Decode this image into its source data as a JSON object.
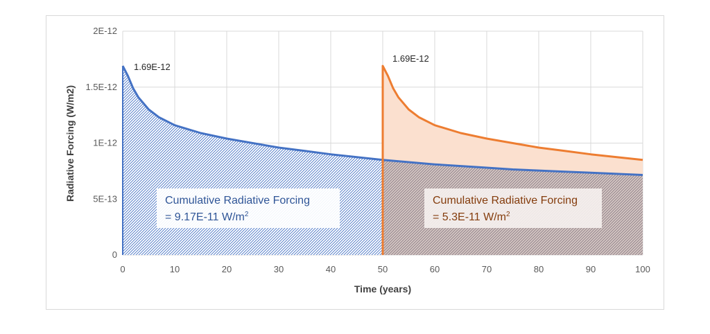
{
  "chart_data": {
    "type": "area",
    "xlabel": "Time (years)",
    "ylabel": "Radiative Forcing (W/m2)",
    "xlim": [
      0,
      100
    ],
    "ylim": [
      0,
      2e-12
    ],
    "x_ticks": [
      0,
      10,
      20,
      30,
      40,
      50,
      60,
      70,
      80,
      90,
      100
    ],
    "x_tick_labels": [
      "0",
      "10",
      "20",
      "30",
      "40",
      "50",
      "60",
      "70",
      "80",
      "90",
      "100"
    ],
    "y_ticks": [
      0,
      5e-13,
      1e-12,
      1.5e-12,
      2e-12
    ],
    "y_tick_labels": [
      "0",
      "5E-13",
      "1E-12",
      "1.5E-12",
      "2E-12"
    ],
    "grid": true,
    "series": [
      {
        "color": "#4472c4",
        "x": [
          0,
          1,
          2,
          3,
          5,
          7,
          10,
          15,
          20,
          25,
          30,
          35,
          40,
          45,
          50,
          55,
          60,
          65,
          70,
          75,
          80,
          85,
          90,
          95,
          100
        ],
        "values": [
          1.69e-12,
          1.6e-12,
          1.49e-12,
          1.41e-12,
          1.3e-12,
          1.23e-12,
          1.16e-12,
          1.09e-12,
          1.04e-12,
          1e-12,
          9.6e-13,
          9.3e-13,
          9e-13,
          8.75e-13,
          8.5e-13,
          8.3e-13,
          8.1e-13,
          7.95e-13,
          7.8e-13,
          7.65e-13,
          7.55e-13,
          7.45e-13,
          7.35e-13,
          7.25e-13,
          7.15e-13
        ]
      },
      {
        "color": "#ed7d31",
        "x": [
          50,
          50,
          51,
          52,
          53,
          55,
          57,
          60,
          65,
          70,
          75,
          80,
          85,
          90,
          95,
          100
        ],
        "values": [
          0,
          1.69e-12,
          1.6e-12,
          1.49e-12,
          1.41e-12,
          1.3e-12,
          1.23e-12,
          1.16e-12,
          1.09e-12,
          1.04e-12,
          1e-12,
          9.6e-13,
          9.3e-13,
          9e-13,
          8.75e-13,
          8.5e-13
        ]
      }
    ],
    "annotations": [
      {
        "text": "1.69E-12",
        "x": 0,
        "y": 1.69e-12
      },
      {
        "text": "1.69E-12",
        "x": 50,
        "y": 1.69e-12
      }
    ],
    "blue_box": {
      "line1": "Cumulative Radiative Forcing",
      "line2": "= 9.17E-11 W/m",
      "sup": "2"
    },
    "red_box": {
      "line1": "Cumulative Radiative Forcing",
      "line2": "= 5.3E-11 W/m",
      "sup": "2"
    }
  }
}
